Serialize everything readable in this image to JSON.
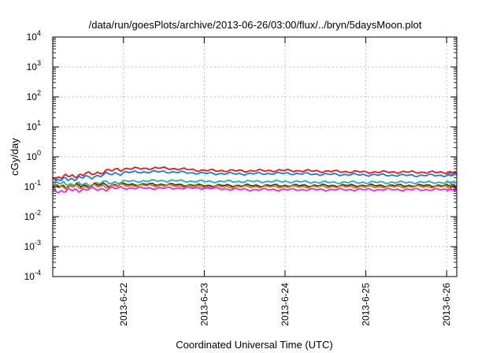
{
  "chart_data": {
    "type": "line",
    "title": "/data/run/goesPlots/archive/2013-06-26/03:00/flux/../bryn/5daysMoon.plot",
    "xlabel": "Coordinated Universal Time (UTC)",
    "ylabel": "cGy/day",
    "yscale": "log",
    "ylim": [
      0.0001,
      10000
    ],
    "xlim": [
      "2013-06-21T03:00",
      "2013-06-26T03:00"
    ],
    "grid": true,
    "x_ticks": [
      "2013-6-22",
      "2013-6-23",
      "2013-6-24",
      "2013-6-25",
      "2013-6-26"
    ],
    "y_ticks": [
      {
        "base": "10",
        "exp": "-4"
      },
      {
        "base": "10",
        "exp": "-3"
      },
      {
        "base": "10",
        "exp": "-2"
      },
      {
        "base": "10",
        "exp": "-1"
      },
      {
        "base": "10",
        "exp": "0"
      },
      {
        "base": "10",
        "exp": "1"
      },
      {
        "base": "10",
        "exp": "2"
      },
      {
        "base": "10",
        "exp": "3"
      },
      {
        "base": "10",
        "exp": "4"
      }
    ],
    "x": [
      "2013-06-21T03:00",
      "2013-06-21T12:00",
      "2013-06-22T00:00",
      "2013-06-22T12:00",
      "2013-06-23T00:00",
      "2013-06-23T12:00",
      "2013-06-24T00:00",
      "2013-06-24T12:00",
      "2013-06-25T00:00",
      "2013-06-25T12:00",
      "2013-06-26T00:00",
      "2013-06-26T03:00"
    ],
    "series": [
      {
        "color": "#e41a1c",
        "values": [
          0.2,
          0.25,
          0.4,
          0.42,
          0.35,
          0.34,
          0.35,
          0.33,
          0.31,
          0.31,
          0.3,
          0.3
        ]
      },
      {
        "color": "#1f77e4",
        "values": [
          0.16,
          0.2,
          0.3,
          0.32,
          0.28,
          0.27,
          0.28,
          0.26,
          0.25,
          0.24,
          0.24,
          0.26
        ]
      },
      {
        "color": "#20b2aa",
        "values": [
          0.13,
          0.12,
          0.15,
          0.16,
          0.15,
          0.15,
          0.15,
          0.14,
          0.14,
          0.14,
          0.14,
          0.14
        ]
      },
      {
        "color": "#5a2a2a",
        "values": [
          0.1,
          0.11,
          0.12,
          0.12,
          0.11,
          0.11,
          0.11,
          0.11,
          0.11,
          0.11,
          0.11,
          0.11
        ]
      },
      {
        "color": "#b8860b",
        "values": [
          0.1,
          0.1,
          0.11,
          0.11,
          0.1,
          0.1,
          0.1,
          0.1,
          0.1,
          0.1,
          0.1,
          0.1
        ]
      },
      {
        "color": "#ff1fff",
        "values": [
          0.07,
          0.08,
          0.09,
          0.09,
          0.09,
          0.08,
          0.08,
          0.08,
          0.08,
          0.08,
          0.08,
          0.08
        ]
      }
    ]
  }
}
